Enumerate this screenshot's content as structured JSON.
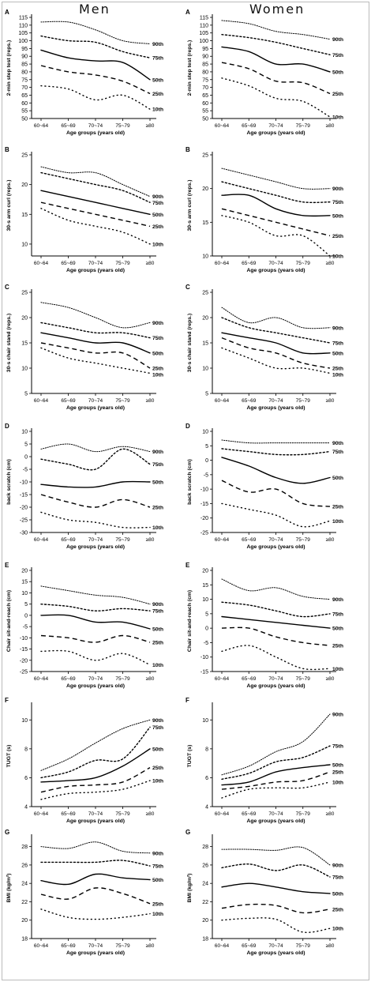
{
  "columns": {
    "men": "Men",
    "women": "Women"
  },
  "x_tick_labels": [
    "60~64",
    "65~69",
    "70~74",
    "75~79",
    "≥80"
  ],
  "x_axis_label": "Age groups (years old)",
  "percentiles": [
    "90th",
    "75th",
    "50th",
    "25th",
    "10th"
  ],
  "line_styles": [
    "dotted-fine",
    "dotted",
    "solid",
    "dashed",
    "dotted-sparse"
  ],
  "chart_data": [
    {
      "type": "line",
      "panel": "A",
      "sex": "Men",
      "ylabel": "2-min step test (reps.)",
      "ylim": [
        50,
        115
      ],
      "yticks": [
        50,
        55,
        60,
        65,
        70,
        75,
        80,
        85,
        90,
        95,
        100,
        105,
        110,
        115
      ],
      "x": [
        "60~64",
        "65~69",
        "70~74",
        "75~79",
        "≥80"
      ],
      "series": [
        {
          "name": "90th",
          "values": [
            112,
            112,
            107,
            100,
            98
          ]
        },
        {
          "name": "75th",
          "values": [
            103,
            100,
            99,
            93,
            89
          ]
        },
        {
          "name": "50th",
          "values": [
            94,
            89,
            87,
            86,
            75
          ]
        },
        {
          "name": "25th",
          "values": [
            84,
            80,
            78,
            74,
            66
          ]
        },
        {
          "name": "10th",
          "values": [
            71,
            69,
            62,
            65,
            56
          ]
        }
      ]
    },
    {
      "type": "line",
      "panel": "A",
      "sex": "Women",
      "ylabel": "2-min step test (reps.)",
      "ylim": [
        50,
        115
      ],
      "yticks": [
        50,
        55,
        60,
        65,
        70,
        75,
        80,
        85,
        90,
        95,
        100,
        105,
        110,
        115
      ],
      "x": [
        "60~64",
        "65~69",
        "70~74",
        "75~79",
        "≥80"
      ],
      "series": [
        {
          "name": "90th",
          "values": [
            113,
            111,
            106,
            104,
            101
          ]
        },
        {
          "name": "75th",
          "values": [
            104,
            102,
            99,
            95,
            91
          ]
        },
        {
          "name": "50th",
          "values": [
            96,
            93,
            85,
            85,
            80
          ]
        },
        {
          "name": "25th",
          "values": [
            86,
            82,
            74,
            73,
            66
          ]
        },
        {
          "name": "10th",
          "values": [
            76,
            71,
            63,
            61,
            51
          ]
        }
      ]
    },
    {
      "type": "line",
      "panel": "B",
      "sex": "Men",
      "ylabel": "30-s arm curl (reps.)",
      "ylim": [
        8,
        25
      ],
      "yticks": [
        10,
        15,
        20,
        25
      ],
      "x": [
        "60~64",
        "65~69",
        "70~74",
        "75~79",
        "≥80"
      ],
      "series": [
        {
          "name": "90th",
          "values": [
            23,
            22,
            22,
            20,
            18
          ]
        },
        {
          "name": "75th",
          "values": [
            22,
            21,
            20,
            19,
            17
          ]
        },
        {
          "name": "50th",
          "values": [
            19,
            18,
            17,
            16,
            15
          ]
        },
        {
          "name": "25th",
          "values": [
            17,
            16,
            15,
            14,
            13
          ]
        },
        {
          "name": "10th",
          "values": [
            16,
            14,
            13,
            12,
            10
          ]
        }
      ]
    },
    {
      "type": "line",
      "panel": "B",
      "sex": "Women",
      "ylabel": "30-s arm curl (reps.)",
      "ylim": [
        10,
        25
      ],
      "yticks": [
        10,
        15,
        20,
        25
      ],
      "x": [
        "60~64",
        "65~69",
        "70~74",
        "75~79",
        "≥80"
      ],
      "series": [
        {
          "name": "90th",
          "values": [
            23,
            22,
            21,
            20,
            20
          ]
        },
        {
          "name": "75th",
          "values": [
            21,
            20,
            19,
            18,
            18
          ]
        },
        {
          "name": "50th",
          "values": [
            19,
            19,
            17,
            16,
            16
          ]
        },
        {
          "name": "25th",
          "values": [
            17,
            16,
            15,
            14,
            13
          ]
        },
        {
          "name": "10th",
          "values": [
            16,
            15,
            13,
            13,
            10
          ]
        }
      ]
    },
    {
      "type": "line",
      "panel": "C",
      "sex": "Men",
      "ylabel": "30-s chair stand (reps.)",
      "ylim": [
        5,
        25
      ],
      "yticks": [
        5,
        10,
        15,
        20,
        25
      ],
      "x": [
        "60~64",
        "65~69",
        "70~74",
        "75~79",
        "≥80"
      ],
      "series": [
        {
          "name": "90th",
          "values": [
            23,
            22,
            20,
            18,
            19
          ]
        },
        {
          "name": "75th",
          "values": [
            19,
            18,
            17,
            17,
            16
          ]
        },
        {
          "name": "50th",
          "values": [
            17,
            16,
            15,
            15,
            13
          ]
        },
        {
          "name": "25th",
          "values": [
            15,
            14,
            13,
            13,
            10
          ]
        },
        {
          "name": "10th",
          "values": [
            14,
            12,
            11,
            10,
            9
          ]
        }
      ]
    },
    {
      "type": "line",
      "panel": "C",
      "sex": "Women",
      "ylabel": "30-s chair stand (reps.)",
      "ylim": [
        5,
        25
      ],
      "yticks": [
        5,
        10,
        15,
        20,
        25
      ],
      "x": [
        "60~64",
        "65~69",
        "70~74",
        "75~79",
        "≥80"
      ],
      "series": [
        {
          "name": "90th",
          "values": [
            22,
            19,
            20,
            18,
            18
          ]
        },
        {
          "name": "75th",
          "values": [
            20,
            18,
            17,
            16,
            15
          ]
        },
        {
          "name": "50th",
          "values": [
            17,
            16,
            15,
            13,
            13
          ]
        },
        {
          "name": "25th",
          "values": [
            16,
            14,
            13,
            11,
            10
          ]
        },
        {
          "name": "10th",
          "values": [
            14,
            12,
            10,
            10,
            9
          ]
        }
      ]
    },
    {
      "type": "line",
      "panel": "D",
      "sex": "Men",
      "ylabel": "back scratch (cm)",
      "ylim": [
        -30,
        10
      ],
      "yticks": [
        -30,
        -25,
        -20,
        -15,
        -10,
        -5,
        0,
        5,
        10
      ],
      "x": [
        "60~64",
        "65~69",
        "70~74",
        "75~79",
        "≥80"
      ],
      "series": [
        {
          "name": "90th",
          "values": [
            3,
            5,
            2,
            4,
            2
          ]
        },
        {
          "name": "75th",
          "values": [
            -1,
            -3,
            -5,
            3,
            -3
          ]
        },
        {
          "name": "50th",
          "values": [
            -11,
            -12,
            -12,
            -10,
            -10
          ]
        },
        {
          "name": "25th",
          "values": [
            -15,
            -18,
            -20,
            -17,
            -20
          ]
        },
        {
          "name": "10th",
          "values": [
            -22,
            -25,
            -26,
            -28,
            -28
          ]
        }
      ]
    },
    {
      "type": "line",
      "panel": "D",
      "sex": "Women",
      "ylabel": "back scratch (cm)",
      "ylim": [
        -25,
        10
      ],
      "yticks": [
        -25,
        -20,
        -15,
        -10,
        -5,
        0,
        5,
        10
      ],
      "x": [
        "60~64",
        "65~69",
        "70~74",
        "75~79",
        "≥80"
      ],
      "series": [
        {
          "name": "90th",
          "values": [
            7,
            6,
            6,
            6,
            6
          ]
        },
        {
          "name": "75th",
          "values": [
            4,
            3,
            2,
            2,
            3
          ]
        },
        {
          "name": "50th",
          "values": [
            1,
            -2,
            -6,
            -8,
            -6
          ]
        },
        {
          "name": "25th",
          "values": [
            -7,
            -11,
            -10,
            -15,
            -16
          ]
        },
        {
          "name": "10th",
          "values": [
            -15,
            -17,
            -19,
            -23,
            -21
          ]
        }
      ]
    },
    {
      "type": "line",
      "panel": "E",
      "sex": "Men",
      "ylabel": "Chair sit-and-reach (cm)",
      "ylim": [
        -25,
        20
      ],
      "yticks": [
        -25,
        -20,
        -15,
        -10,
        -5,
        0,
        5,
        10,
        15,
        20
      ],
      "x": [
        "60~64",
        "65~69",
        "70~74",
        "75~79",
        "≥80"
      ],
      "series": [
        {
          "name": "90th",
          "values": [
            13,
            11,
            9,
            8,
            5
          ]
        },
        {
          "name": "75th",
          "values": [
            5,
            4,
            2,
            3,
            2
          ]
        },
        {
          "name": "50th",
          "values": [
            0,
            0,
            -3,
            -3,
            -6
          ]
        },
        {
          "name": "25th",
          "values": [
            -9,
            -10,
            -12,
            -9,
            -12
          ]
        },
        {
          "name": "10th",
          "values": [
            -16,
            -16,
            -20,
            -17,
            -22
          ]
        }
      ]
    },
    {
      "type": "line",
      "panel": "E",
      "sex": "Women",
      "ylabel": "Chair sit-and-reach (cm)",
      "ylim": [
        -15,
        20
      ],
      "yticks": [
        -15,
        -10,
        -5,
        0,
        5,
        10,
        15,
        20
      ],
      "x": [
        "60~64",
        "65~69",
        "70~74",
        "75~79",
        "≥80"
      ],
      "series": [
        {
          "name": "90th",
          "values": [
            17,
            13,
            14,
            11,
            10
          ]
        },
        {
          "name": "75th",
          "values": [
            9,
            8,
            6,
            4,
            5
          ]
        },
        {
          "name": "50th",
          "values": [
            4,
            3,
            2,
            1,
            0
          ]
        },
        {
          "name": "25th",
          "values": [
            0,
            0,
            -3,
            -5,
            -6
          ]
        },
        {
          "name": "10th",
          "values": [
            -8,
            -6,
            -10,
            -14,
            -14
          ]
        }
      ]
    },
    {
      "type": "line",
      "panel": "F",
      "sex": "Men",
      "ylabel": "TUGT (s)",
      "ylim": [
        4,
        11
      ],
      "yticks": [
        4,
        6,
        8,
        10
      ],
      "x": [
        "60~64",
        "65~69",
        "70~74",
        "75~79",
        "≥80"
      ],
      "series": [
        {
          "name": "90th",
          "values": [
            6.5,
            7.3,
            8.4,
            9.4,
            10.0
          ]
        },
        {
          "name": "75th",
          "values": [
            6.0,
            6.4,
            7.2,
            7.3,
            9.5
          ]
        },
        {
          "name": "50th",
          "values": [
            5.7,
            5.8,
            6.0,
            6.8,
            8.0
          ]
        },
        {
          "name": "25th",
          "values": [
            5.0,
            5.4,
            5.5,
            5.7,
            6.7
          ]
        },
        {
          "name": "10th",
          "values": [
            4.5,
            4.9,
            5.0,
            5.2,
            5.8
          ]
        }
      ]
    },
    {
      "type": "line",
      "panel": "F",
      "sex": "Women",
      "ylabel": "TUGT (s)",
      "ylim": [
        4,
        11
      ],
      "yticks": [
        4,
        6,
        8,
        10
      ],
      "x": [
        "60~64",
        "65~69",
        "70~74",
        "75~79",
        "≥80"
      ],
      "series": [
        {
          "name": "90th",
          "values": [
            6.2,
            6.8,
            7.8,
            8.5,
            10.4
          ]
        },
        {
          "name": "75th",
          "values": [
            5.9,
            6.3,
            7.1,
            7.4,
            8.2
          ]
        },
        {
          "name": "50th",
          "values": [
            5.5,
            5.7,
            6.4,
            6.7,
            6.9
          ]
        },
        {
          "name": "25th",
          "values": [
            5.2,
            5.4,
            5.7,
            5.8,
            6.4
          ]
        },
        {
          "name": "10th",
          "values": [
            4.6,
            5.2,
            5.3,
            5.3,
            5.7
          ]
        }
      ]
    },
    {
      "type": "line",
      "panel": "G",
      "sex": "Men",
      "ylabel": "BMI (kg/m²)",
      "ylim": [
        18,
        29
      ],
      "yticks": [
        18,
        20,
        22,
        24,
        26,
        28
      ],
      "x": [
        "60~64",
        "65~69",
        "70~74",
        "75~79",
        "≥80"
      ],
      "series": [
        {
          "name": "90th",
          "values": [
            28.0,
            27.8,
            28.5,
            27.5,
            27.3
          ]
        },
        {
          "name": "75th",
          "values": [
            26.3,
            26.3,
            26.3,
            26.5,
            25.9
          ]
        },
        {
          "name": "50th",
          "values": [
            24.3,
            23.9,
            25.0,
            24.6,
            24.4
          ]
        },
        {
          "name": "25th",
          "values": [
            22.8,
            22.3,
            23.5,
            22.9,
            21.8
          ]
        },
        {
          "name": "10th",
          "values": [
            21.2,
            20.3,
            20.1,
            20.3,
            20.7
          ]
        }
      ]
    },
    {
      "type": "line",
      "panel": "G",
      "sex": "Women",
      "ylabel": "BMI (kg/m²)",
      "ylim": [
        18,
        29
      ],
      "yticks": [
        18,
        20,
        22,
        24,
        26,
        28
      ],
      "x": [
        "60~64",
        "65~69",
        "70~74",
        "75~79",
        "≥80"
      ],
      "series": [
        {
          "name": "90th",
          "values": [
            27.7,
            27.7,
            27.6,
            27.9,
            26.0
          ]
        },
        {
          "name": "75th",
          "values": [
            25.7,
            26.1,
            25.4,
            26.0,
            24.7
          ]
        },
        {
          "name": "50th",
          "values": [
            23.6,
            24.0,
            23.6,
            23.1,
            22.9
          ]
        },
        {
          "name": "25th",
          "values": [
            21.3,
            21.7,
            21.6,
            20.8,
            21.2
          ]
        },
        {
          "name": "10th",
          "values": [
            20.0,
            20.2,
            20.1,
            18.7,
            19.1
          ]
        }
      ]
    }
  ]
}
